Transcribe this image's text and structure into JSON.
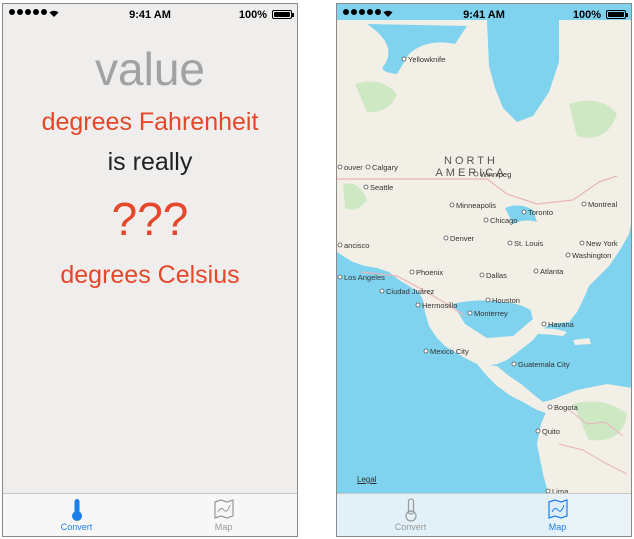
{
  "status_bar": {
    "time": "9:41 AM",
    "battery": "100%"
  },
  "convert_screen": {
    "value_placeholder": "value",
    "from_unit": "degrees Fahrenheit",
    "connector": "is really",
    "result": "???",
    "to_unit": "degrees Celsius"
  },
  "tabs": {
    "convert": "Convert",
    "map": "Map"
  },
  "map": {
    "continent_line1": "NORTH",
    "continent_line2": "AMERICA",
    "legal": "Legal",
    "cities": {
      "yellowknife": "Yellowknife",
      "calgary": "Calgary",
      "vancouver": "ouver",
      "seattle": "Seattle",
      "winnipeg": "Winnipeg",
      "minneapolis": "Minneapolis",
      "toronto": "Toronto",
      "montreal": "Montreal",
      "chicago": "Chicago",
      "denver": "Denver",
      "san_francisco": "ancisco",
      "st_louis": "St. Louis",
      "new_york": "New York",
      "washington": "Washington",
      "los_angeles": "Los Angeles",
      "phoenix": "Phoenix",
      "dallas": "Dallas",
      "atlanta": "Atlanta",
      "ciudad_juarez": "Ciudad Juárez",
      "hermosillo": "Hermosillo",
      "houston": "Houston",
      "monterrey": "Monterrey",
      "havana": "Havana",
      "mexico_city": "Mexico City",
      "guatemala_city": "Guatemala City",
      "bogota": "Bogota",
      "quito": "Quito",
      "lima": "Lima"
    }
  },
  "colors": {
    "accent_red": "#e4472a",
    "tab_blue": "#1a7fe8",
    "ocean": "#7fd3ee",
    "land": "#f2efe6"
  }
}
